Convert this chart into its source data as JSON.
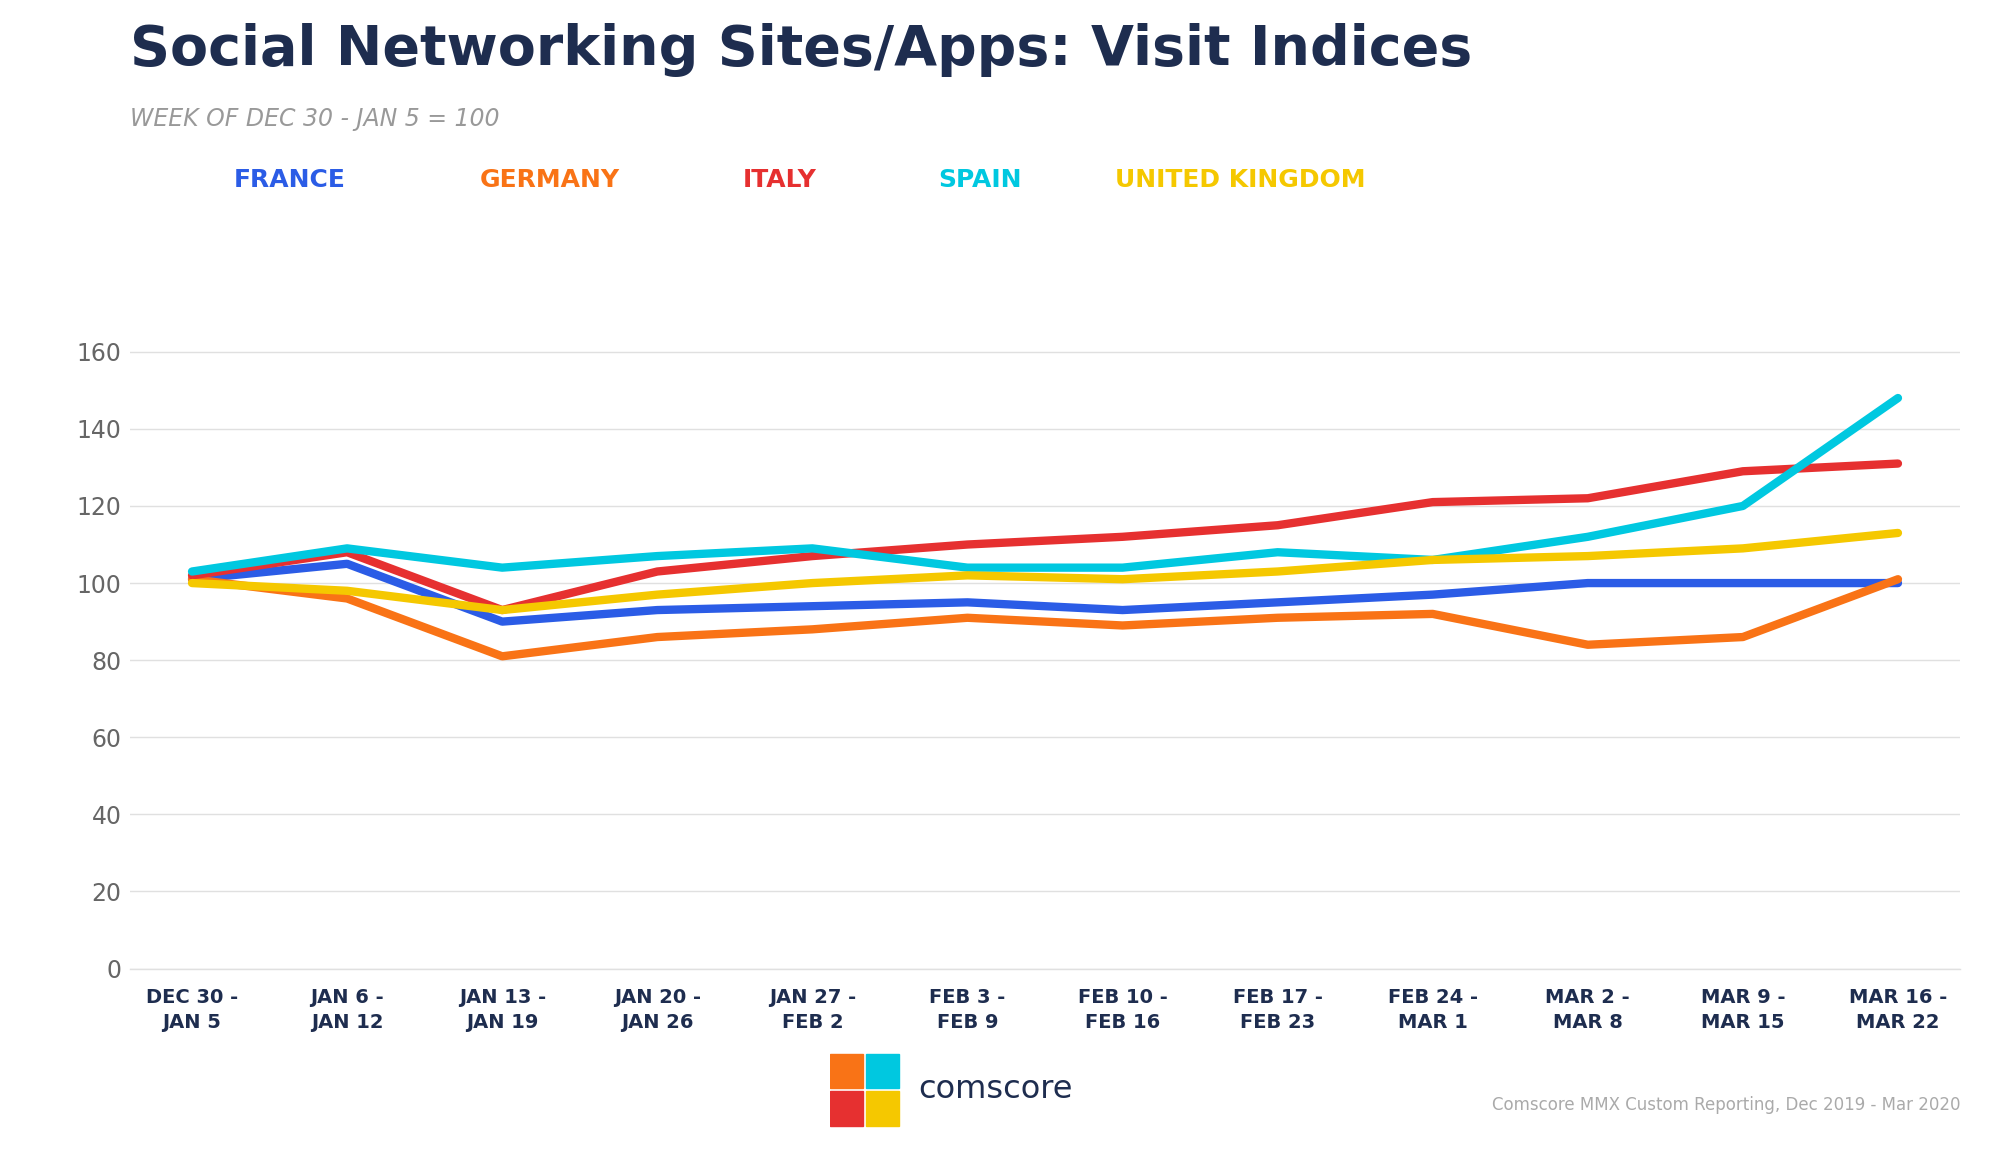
{
  "title": "Social Networking Sites/Apps: Visit Indices",
  "subtitle": "WEEK OF DEC 30 - JAN 5 = 100",
  "title_color": "#1e2d4f",
  "subtitle_color": "#999999",
  "title_fontsize": 40,
  "subtitle_fontsize": 17,
  "background_color": "#ffffff",
  "x_labels": [
    "DEC 30 -\nJAN 5",
    "JAN 6 -\nJAN 12",
    "JAN 13 -\nJAN 19",
    "JAN 20 -\nJAN 26",
    "JAN 27 -\nFEB 2",
    "FEB 3 -\nFEB 9",
    "FEB 10 -\nFEB 16",
    "FEB 17 -\nFEB 23",
    "FEB 24 -\nMAR 1",
    "MAR 2 -\nMAR 8",
    "MAR 9 -\nMAR 15",
    "MAR 16 -\nMAR 22"
  ],
  "series": [
    {
      "label": "FRANCE",
      "color": "#2b5ce6",
      "values": [
        101,
        105,
        90,
        93,
        94,
        95,
        93,
        95,
        97,
        100,
        100,
        100
      ]
    },
    {
      "label": "GERMANY",
      "color": "#f97316",
      "values": [
        101,
        96,
        81,
        86,
        88,
        91,
        89,
        91,
        92,
        84,
        86,
        101
      ]
    },
    {
      "label": "ITALY",
      "color": "#e63030",
      "values": [
        102,
        108,
        93,
        103,
        107,
        110,
        112,
        115,
        121,
        122,
        129,
        131
      ]
    },
    {
      "label": "SPAIN",
      "color": "#00c8e0",
      "values": [
        103,
        109,
        104,
        107,
        109,
        104,
        104,
        108,
        106,
        112,
        120,
        148
      ]
    },
    {
      "label": "UNITED KINGDOM",
      "color": "#f5c800",
      "values": [
        100,
        98,
        93,
        97,
        100,
        102,
        101,
        103,
        106,
        107,
        109,
        113
      ]
    }
  ],
  "ylim": [
    0,
    170
  ],
  "yticks": [
    0,
    20,
    40,
    60,
    80,
    100,
    120,
    140,
    160
  ],
  "grid_color": "#e0e0e0",
  "comscore_text": "comscore",
  "footnote": "Comscore MMX Custom Reporting, Dec 2019 - Mar 2020",
  "line_width": 6.0,
  "legend_entries": [
    {
      "label": "FRANCE",
      "color": "#2b5ce6"
    },
    {
      "label": "GERMANY",
      "color": "#f97316"
    },
    {
      "label": "ITALY",
      "color": "#e63030"
    },
    {
      "label": "SPAIN",
      "color": "#00c8e0"
    },
    {
      "label": "UNITED KINGDOM",
      "color": "#f5c800"
    }
  ]
}
